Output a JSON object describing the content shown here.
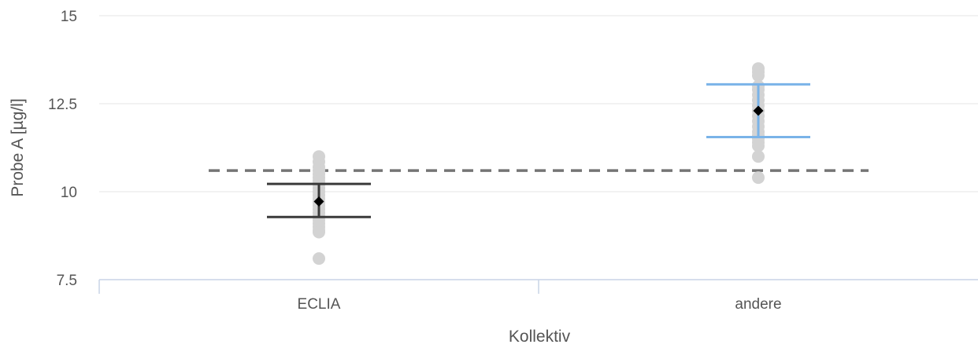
{
  "chart_data": {
    "type": "scatter",
    "xlabel": "Kollektiv",
    "ylabel": "Probe A [µg/l]",
    "categories": [
      "ECLIA",
      "andere"
    ],
    "ylim": [
      7.5,
      15
    ],
    "yticks": [
      {
        "value": 7.5,
        "label": "7.5"
      },
      {
        "value": 10,
        "label": "10"
      },
      {
        "value": 12.5,
        "label": "12.5"
      },
      {
        "value": 15,
        "label": "15"
      }
    ],
    "grid": true,
    "reference_line": {
      "value": 10.6,
      "style": "dashed",
      "color": "#757575"
    },
    "groups": [
      {
        "category": "ECLIA",
        "color": "#3a3a3a",
        "mean": 9.72,
        "upper": 10.22,
        "lower": 9.28,
        "points": [
          11.0,
          10.85,
          10.7,
          10.6,
          10.5,
          10.4,
          10.3,
          10.2,
          10.1,
          10.0,
          9.9,
          9.8,
          9.7,
          9.6,
          9.5,
          9.4,
          9.3,
          9.2,
          9.1,
          9.0,
          8.9,
          8.85,
          8.1
        ]
      },
      {
        "category": "andere",
        "color": "#7ab3e8",
        "mean": 12.3,
        "upper": 13.05,
        "lower": 11.55,
        "points": [
          13.5,
          13.4,
          13.3,
          13.0,
          12.9,
          12.75,
          12.6,
          12.45,
          12.3,
          12.15,
          12.0,
          11.85,
          11.7,
          11.6,
          11.5,
          11.4,
          11.3,
          11.0,
          10.4
        ]
      }
    ],
    "point_color": "#d3d3d3",
    "mean_marker_color": "#000000"
  }
}
